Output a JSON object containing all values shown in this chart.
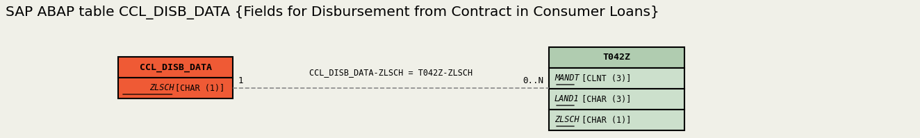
{
  "title": "SAP ABAP table CCL_DISB_DATA {Fields for Disbursement from Contract in Consumer Loans}",
  "title_fontsize": 14.5,
  "left_table_name": "CCL_DISB_DATA",
  "left_table_fields": [
    "ZLSCH [CHAR (1)]"
  ],
  "left_header_color": "#ef5a35",
  "left_field_color": "#ef5a35",
  "right_table_name": "T042Z",
  "right_table_fields": [
    "MANDT [CLNT (3)]",
    "LAND1 [CHAR (3)]",
    "ZLSCH [CHAR (1)]"
  ],
  "right_header_color": "#b0ccb0",
  "right_field_color": "#cce0cc",
  "relation_label": "CCL_DISB_DATA-ZLSCH = T042Z-ZLSCH",
  "left_cardinality": "1",
  "right_cardinality": "0..N",
  "bg_color": "#f0f0e8",
  "border_color": "#000000",
  "line_color": "#888888"
}
